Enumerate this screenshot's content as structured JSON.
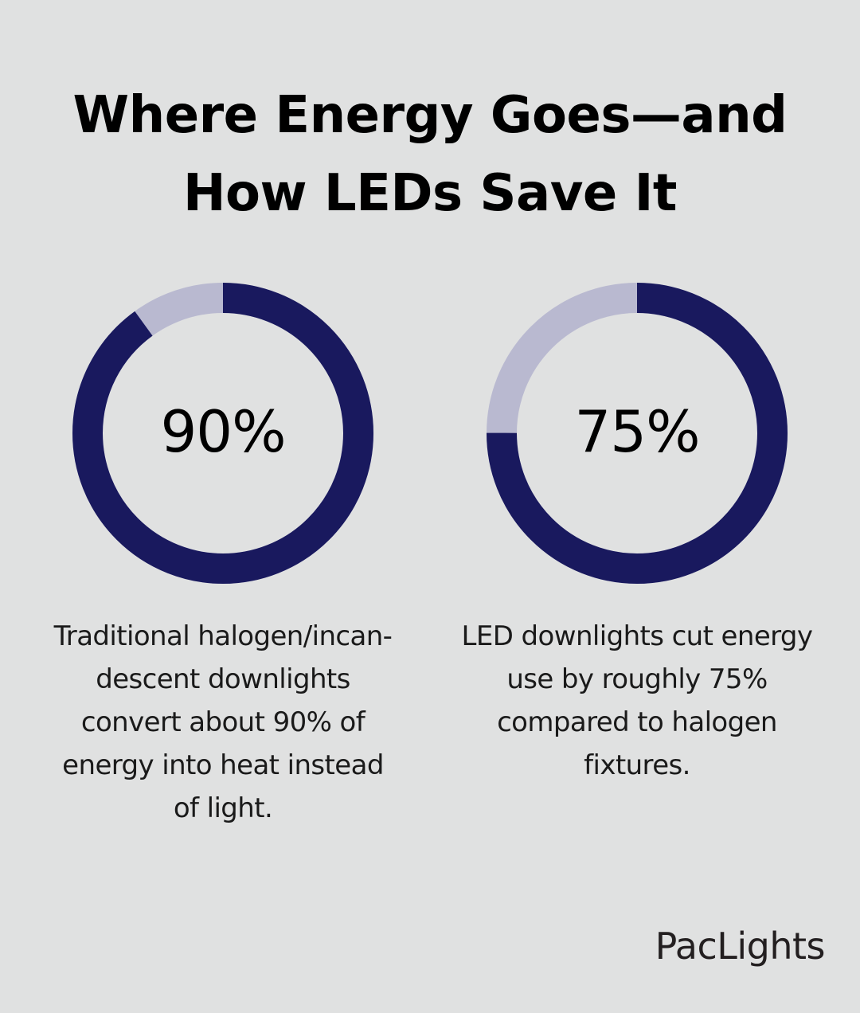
{
  "title_line1": "Where Energy Goes—and",
  "title_line2": "How LEDs Save It",
  "chart_data": [
    {
      "type": "pie",
      "value": 90,
      "remainder": 10,
      "label": "90%",
      "description": "Traditional halogen/incan-descent downlights convert about 90% of energy into heat instead of light.",
      "description_lines": [
        "Traditional halogen/incan-",
        "descent downlights",
        "convert about 90% of",
        "energy into heat instead",
        "of light."
      ]
    },
    {
      "type": "pie",
      "value": 75,
      "remainder": 25,
      "label": "75%",
      "description": "LED downlights cut energy use by roughly 75% compared to halogen fixtures.",
      "description_lines": [
        "LED downlights cut energy",
        "use by roughly 75%",
        "compared to halogen",
        "fixtures."
      ]
    }
  ],
  "colors": {
    "background": "#e0e1e1",
    "filled": "#19195e",
    "remainder": "#b9b9d0",
    "text": "#000000"
  },
  "brand": "PacLights"
}
